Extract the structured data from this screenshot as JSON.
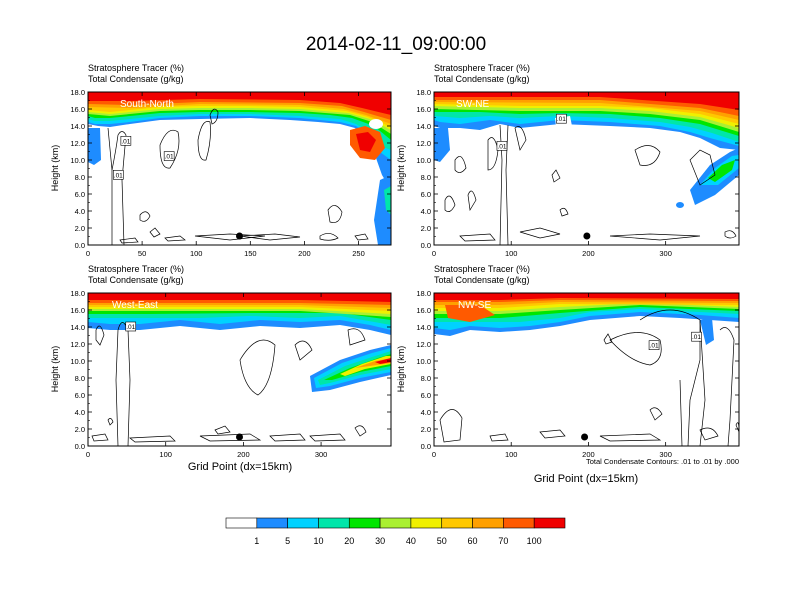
{
  "title": "2014-02-11_09:00:00",
  "chart_data": {
    "type": "contour",
    "panels": [
      {
        "name": "South-North",
        "label_line1": "Stratosphere Tracer   (%)",
        "label_line2": "Total Condensate   (g/kg)",
        "xlim": [
          0,
          280
        ],
        "xticks": [
          0,
          50,
          100,
          150,
          200,
          250
        ],
        "ylabel": "Height (km)",
        "xlabel": "",
        "marker_x": 140,
        "contour_labels": [
          {
            "text": ".01",
            "x": 35,
            "y": 12.2
          },
          {
            "text": ".01",
            "x": 75,
            "y": 10.4
          },
          {
            "text": ".01",
            "x": 28,
            "y": 8.2
          }
        ]
      },
      {
        "name": "SW-NE",
        "label_line1": "Stratosphere Tracer   (%)",
        "label_line2": "Total Condensate   (g/kg)",
        "xlim": [
          0,
          395
        ],
        "xticks": [
          0,
          100,
          200,
          300
        ],
        "ylabel": "Height (km)",
        "xlabel": "",
        "marker_x": 198,
        "contour_labels": [
          {
            "text": ".01",
            "x": 165,
            "y": 14.8
          },
          {
            "text": ".01",
            "x": 88,
            "y": 11.6
          }
        ]
      },
      {
        "name": "West-East",
        "label_line1": "Stratosphere Tracer   (%)",
        "label_line2": "Total Condensate   (g/kg)",
        "xlim": [
          0,
          390
        ],
        "xticks": [
          0,
          100,
          200,
          300
        ],
        "ylabel": "Height (km)",
        "xlabel": "Grid Point (dx=15km)",
        "marker_x": 195,
        "contour_labels": [
          {
            "text": ".01",
            "x": 55,
            "y": 14.0
          }
        ]
      },
      {
        "name": "NW-SE",
        "label_line1": "Stratosphere Tracer   (%)",
        "label_line2": "Total Condensate   (g/kg)",
        "xlim": [
          0,
          395
        ],
        "xticks": [
          0,
          100,
          200,
          300
        ],
        "ylabel": "Height (km)",
        "xlabel": "Grid Point (dx=15km)",
        "marker_x": 195,
        "contour_labels": [
          {
            "text": ".01",
            "x": 285,
            "y": 11.8
          },
          {
            "text": ".01",
            "x": 340,
            "y": 12.8
          }
        ]
      }
    ],
    "ylim": [
      0,
      18
    ],
    "yticks": [
      "0.0",
      "2.0",
      "4.0",
      "6.0",
      "8.0",
      "10.0",
      "12.0",
      "14.0",
      "16.0",
      "18.0"
    ],
    "contour_info": "Total Condensate Contours: .01 to .01 by .000",
    "colorbar": {
      "levels": [
        "1",
        "5",
        "10",
        "20",
        "30",
        "40",
        "50",
        "60",
        "70",
        "100"
      ],
      "colors": [
        "#ffffff",
        "#1e8cff",
        "#00d2ff",
        "#00e6aa",
        "#00e600",
        "#aaf032",
        "#f0f000",
        "#ffc800",
        "#ffa000",
        "#ff5a00",
        "#f00000"
      ]
    }
  }
}
